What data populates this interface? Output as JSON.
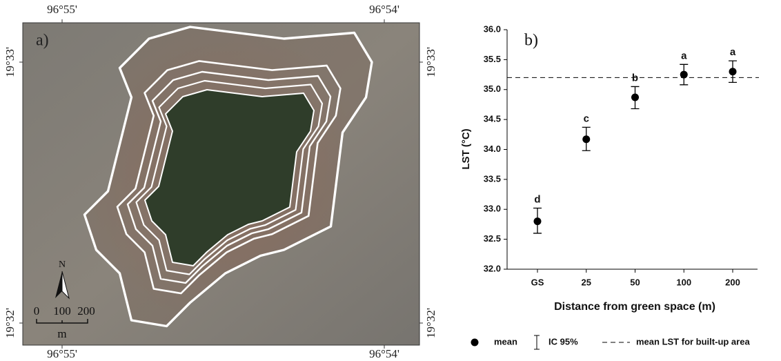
{
  "map": {
    "panel_label": "a)",
    "top_labels": [
      "96°55'",
      "96°54'"
    ],
    "bottom_labels": [
      "96°55'",
      "96°54'"
    ],
    "left_labels": [
      "19°33'",
      "19°32'"
    ],
    "right_labels": [
      "19°33'",
      "19°32'"
    ],
    "north": "N",
    "scale_labels": [
      "0",
      "100",
      "200"
    ],
    "scale_unit": "m"
  },
  "chart_data": {
    "type": "scatter",
    "panel_label": "b)",
    "x_label": "Distance from green space (m)",
    "y_label": "LST (°C)",
    "categories": [
      "GS",
      "25",
      "50",
      "100",
      "200"
    ],
    "series": [
      {
        "name": "mean",
        "color": "#000000",
        "values": [
          32.8,
          34.17,
          34.87,
          35.25,
          35.3
        ],
        "ci_low": [
          32.6,
          33.98,
          34.68,
          35.08,
          35.12
        ],
        "ci_high": [
          33.02,
          34.37,
          35.05,
          35.42,
          35.48
        ],
        "letters": [
          "d",
          "c",
          "b",
          "a",
          "a"
        ]
      }
    ],
    "error_label": "IC 95%",
    "reference_line": {
      "value": 35.2,
      "label": "mean LST for built-up area"
    },
    "ylim": [
      32,
      36
    ],
    "yticks": [
      {
        "value": 32,
        "label": "32.0"
      },
      32.5,
      {
        "value": 33,
        "label": "33.0"
      },
      33.5,
      {
        "value": 34,
        "label": "34.0"
      },
      34.5,
      {
        "value": 35,
        "label": "35.0"
      },
      35.5,
      {
        "value": 36,
        "label": "36.0"
      }
    ]
  }
}
